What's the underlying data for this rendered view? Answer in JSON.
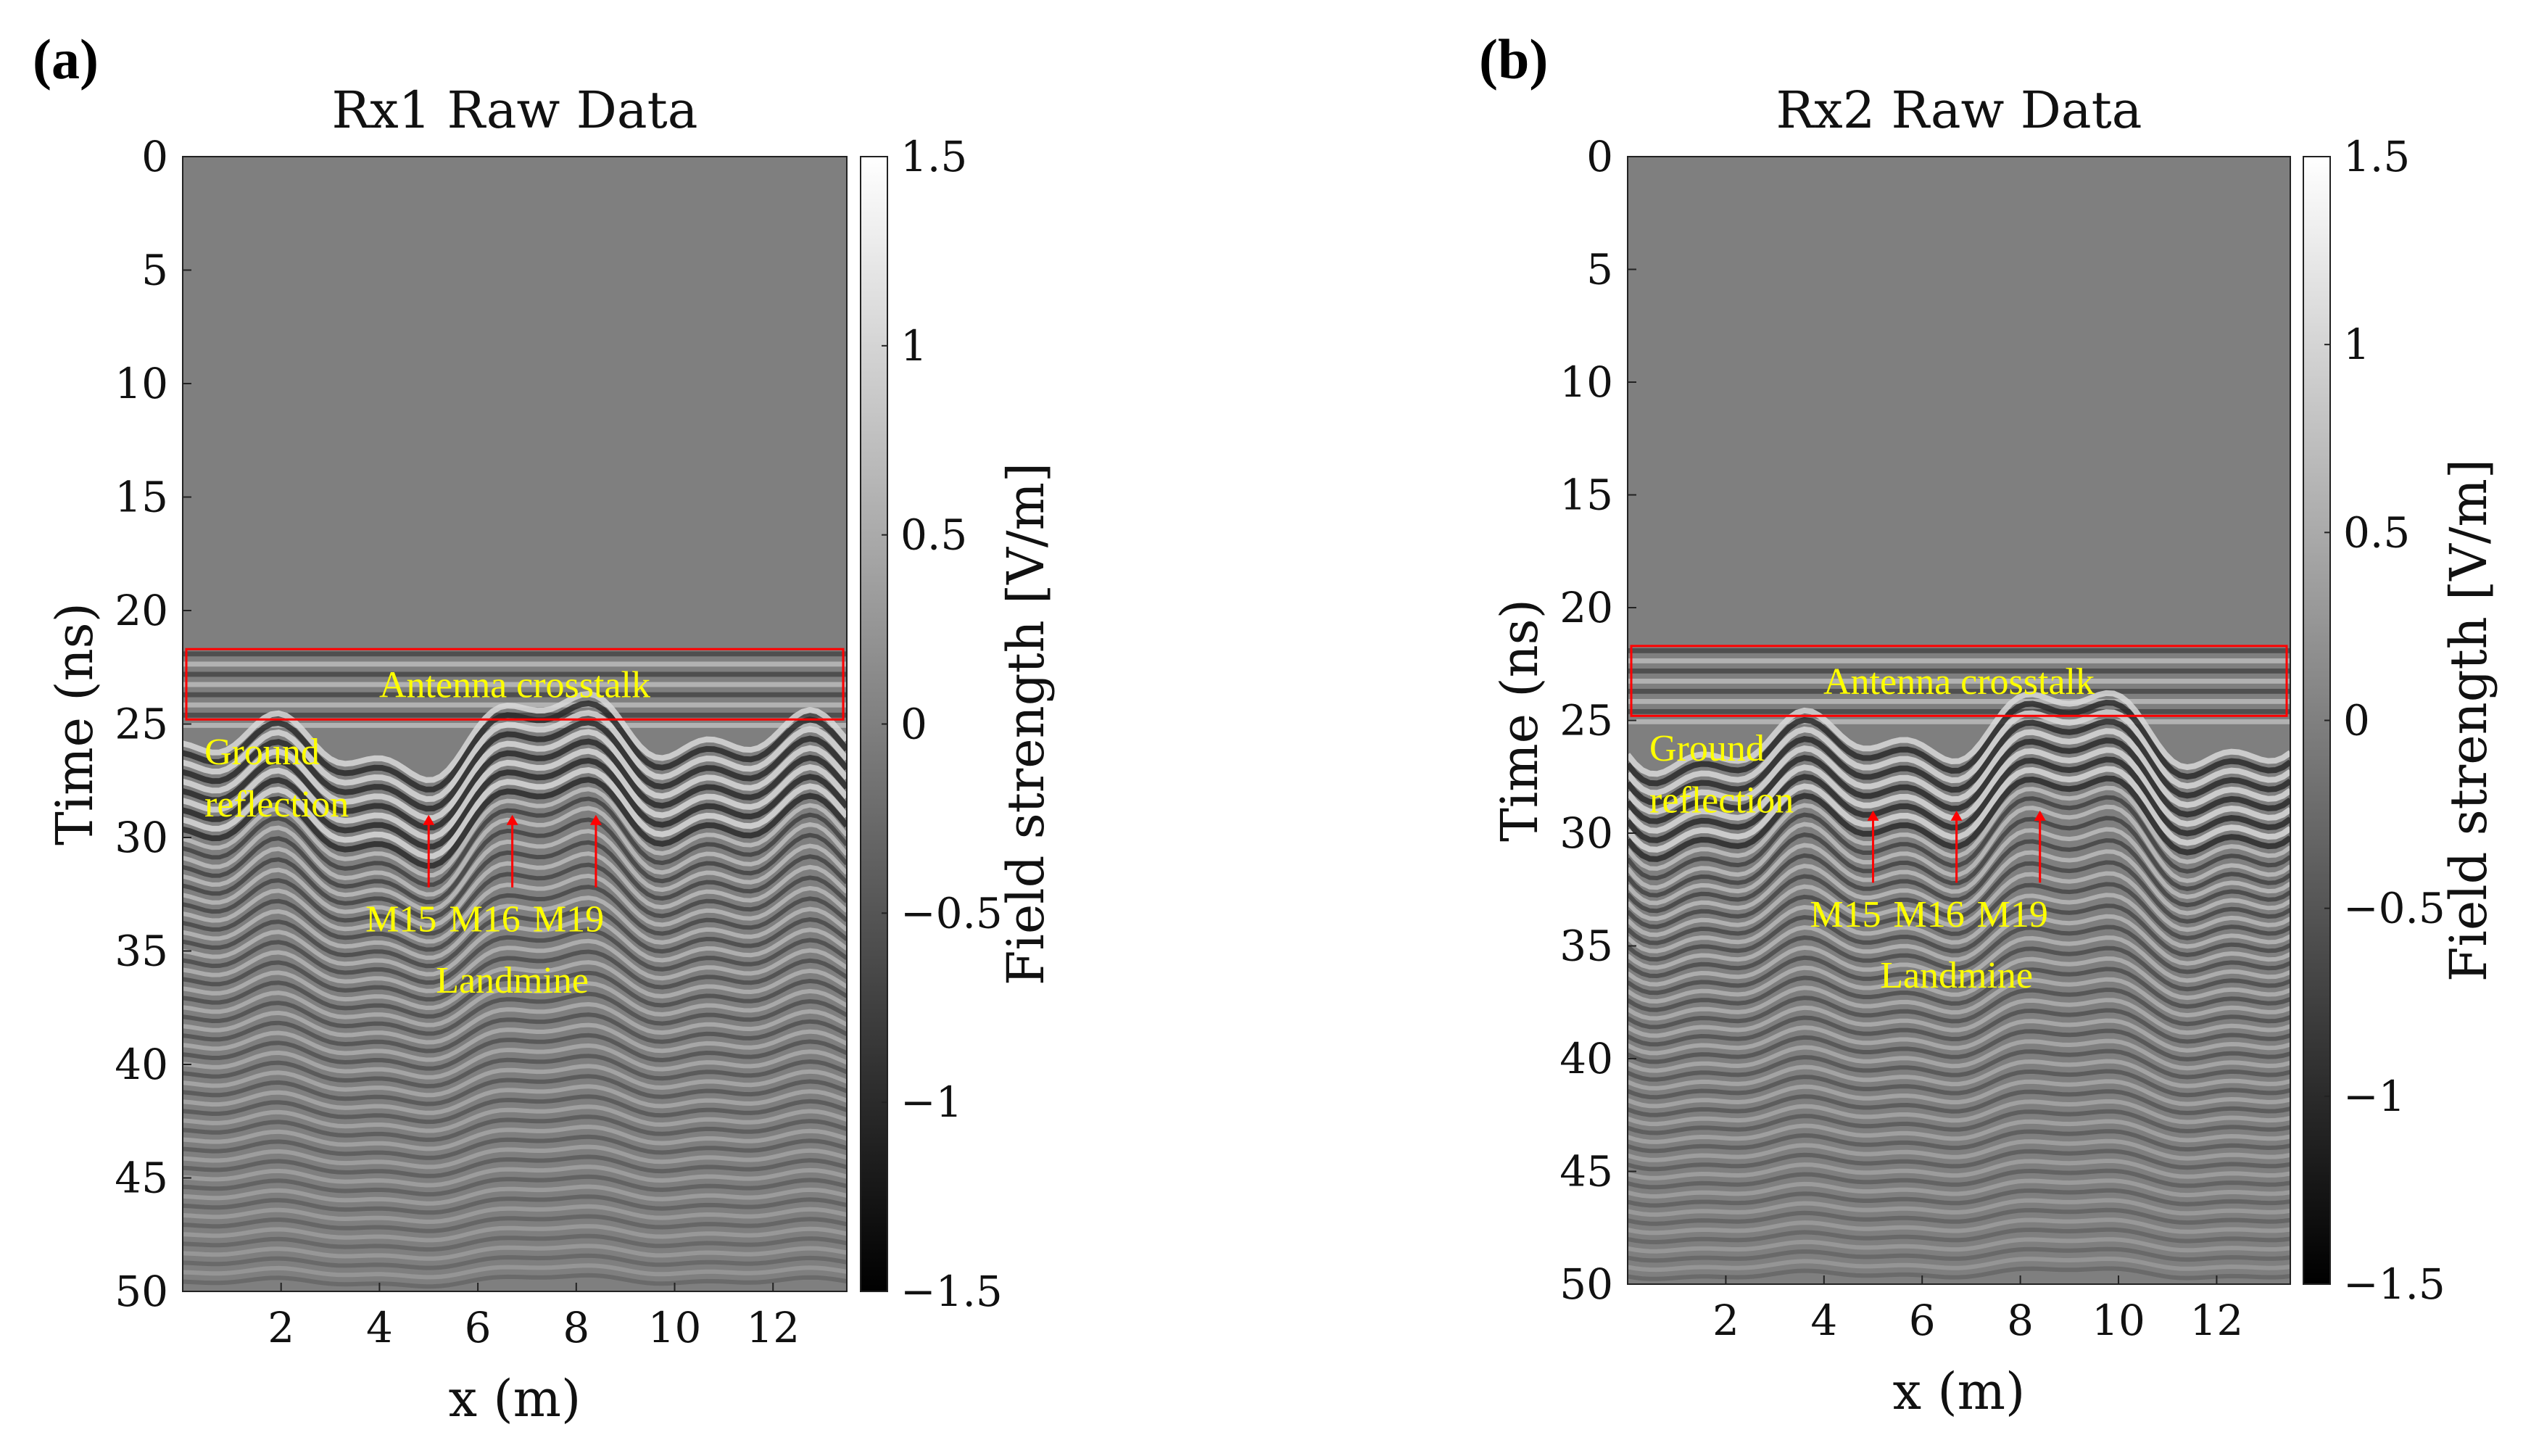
{
  "chart_data": [
    {
      "type": "heatmap",
      "panel_label": "(a)",
      "title": "Rx1 Raw Data",
      "xlabel": "x (m)",
      "ylabel": "Time (ns)",
      "xlim": [
        0,
        13.5
      ],
      "ylim": [
        0,
        50
      ],
      "x_ticks": [
        "2",
        "4",
        "6",
        "8",
        "10",
        "12"
      ],
      "x_tick_values": [
        2,
        4,
        6,
        8,
        10,
        12
      ],
      "y_ticks": [
        "0",
        "5",
        "10",
        "15",
        "20",
        "25",
        "30",
        "35",
        "40",
        "45",
        "50"
      ],
      "y_tick_values": [
        0,
        5,
        10,
        15,
        20,
        25,
        30,
        35,
        40,
        45,
        50
      ],
      "colorbar": {
        "label": "Field strength [V/m]",
        "range": [
          -1.5,
          1.5
        ],
        "ticks": [
          "1.5",
          "1",
          "0.5",
          "0",
          "−0.5",
          "−1",
          "−1.5"
        ],
        "tick_values": [
          1.5,
          1,
          0.5,
          0,
          -0.5,
          -1,
          -1.5
        ]
      },
      "annotations": {
        "crosstalk_label": "Antenna crosstalk",
        "crosstalk_range_ns": [
          22,
          25
        ],
        "ground_line1": "Ground",
        "ground_line2": "reflection",
        "landmine_label": "Landmine",
        "mines": [
          {
            "label": "M15",
            "x": 5.0,
            "arrow_tip_ns": 29,
            "label_ns": 33.5
          },
          {
            "label": "M16",
            "x": 6.7,
            "arrow_tip_ns": 29,
            "label_ns": 33.5
          },
          {
            "label": "M19",
            "x": 8.4,
            "arrow_tip_ns": 29,
            "label_ns": 33.5
          }
        ]
      }
    },
    {
      "type": "heatmap",
      "panel_label": "(b)",
      "title": "Rx2 Raw Data",
      "xlabel": "x (m)",
      "ylabel": "Time (ns)",
      "xlim": [
        0,
        13.5
      ],
      "ylim": [
        0,
        50
      ],
      "x_ticks": [
        "2",
        "4",
        "6",
        "8",
        "10",
        "12"
      ],
      "x_tick_values": [
        2,
        4,
        6,
        8,
        10,
        12
      ],
      "y_ticks": [
        "0",
        "5",
        "10",
        "15",
        "20",
        "25",
        "30",
        "35",
        "40",
        "45",
        "50"
      ],
      "y_tick_values": [
        0,
        5,
        10,
        15,
        20,
        25,
        30,
        35,
        40,
        45,
        50
      ],
      "colorbar": {
        "label": "Field strength [V/m]",
        "range": [
          -1.5,
          1.5
        ],
        "ticks": [
          "1.5",
          "1",
          "0.5",
          "0",
          "−0.5",
          "−1",
          "−1.5"
        ],
        "tick_values": [
          1.5,
          1,
          0.5,
          0,
          -0.5,
          -1,
          -1.5
        ]
      },
      "annotations": {
        "crosstalk_label": "Antenna crosstalk",
        "crosstalk_range_ns": [
          22,
          25
        ],
        "ground_line1": "Ground",
        "ground_line2": "reflection",
        "landmine_label": "Landmine",
        "mines": [
          {
            "label": "M15",
            "x": 5.0,
            "arrow_tip_ns": 29,
            "label_ns": 33.5
          },
          {
            "label": "M16",
            "x": 6.7,
            "arrow_tip_ns": 29,
            "label_ns": 33.5
          },
          {
            "label": "M19",
            "x": 8.4,
            "arrow_tip_ns": 29,
            "label_ns": 33.5
          }
        ]
      }
    }
  ],
  "colors": {
    "background_field": "#7f7f7f",
    "annotation_text": "#ffff00",
    "annotation_box": "#ff0000",
    "arrow": "#ff0000"
  }
}
